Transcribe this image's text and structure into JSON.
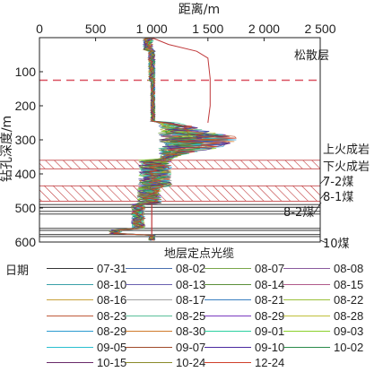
{
  "chart_data": {
    "type": "line",
    "title": "",
    "xlabel": "距离/m",
    "ylabel": "钻孔深度/m",
    "x_axis_position": "top",
    "y_inverted": true,
    "xlim": [
      0,
      2500
    ],
    "ylim": [
      600,
      0
    ],
    "x_ticks": [
      0,
      500,
      1000,
      1500,
      2000,
      2500
    ],
    "x_tick_labels": [
      "0",
      "500",
      "1 000",
      "1 500",
      "2 000",
      "2 500"
    ],
    "y_ticks": [
      100,
      200,
      300,
      400,
      500,
      600
    ],
    "y_tick_labels": [
      "100",
      "200",
      "300",
      "400",
      "500",
      "600"
    ],
    "annotation": "地层定点光缆",
    "annotation_depth": 600,
    "reference_line_x": 1000,
    "dashed_line_depth": 125,
    "layers": [
      {
        "name": "松散层",
        "type": "dashed-line",
        "depth": 125
      },
      {
        "name": "上火成岩",
        "type": "hatched",
        "top": 360,
        "bottom": 385
      },
      {
        "name": "下火成岩",
        "type": "hatched",
        "top": 435,
        "bottom": 480
      },
      {
        "name": "7-2煤",
        "type": "coal",
        "top": 490,
        "bottom": 498
      },
      {
        "name": "8-1煤",
        "type": "coal",
        "top": 510,
        "bottom": 518
      },
      {
        "name": "8-2煤",
        "type": "coal",
        "top": 560,
        "bottom": 566
      },
      {
        "name": "10煤",
        "type": "coal",
        "top": 578,
        "bottom": 584
      }
    ],
    "legend_title": "日期",
    "legend_position": "bottom",
    "colors": {
      "dashed_line": "#d95060",
      "hatch": "#c0393b",
      "reference_line": "#c0393b"
    },
    "series": [
      {
        "name": "07-31",
        "color": "#333333"
      },
      {
        "name": "08-02",
        "color": "#4a6fb0"
      },
      {
        "name": "08-07",
        "color": "#7aa64a"
      },
      {
        "name": "08-08",
        "color": "#8a5a9e"
      },
      {
        "name": "08-10",
        "color": "#3aa0a8"
      },
      {
        "name": "08-13",
        "color": "#6a60b0"
      },
      {
        "name": "08-14",
        "color": "#5b8f3a"
      },
      {
        "name": "08-15",
        "color": "#b05a8a"
      },
      {
        "name": "08-16",
        "color": "#c8a03a"
      },
      {
        "name": "08-17",
        "color": "#a0a0a0"
      },
      {
        "name": "08-21",
        "color": "#3a7fc0"
      },
      {
        "name": "08-22",
        "color": "#9ac03a"
      },
      {
        "name": "08-23",
        "color": "#c05a3a"
      },
      {
        "name": "08-25",
        "color": "#5ac09a"
      },
      {
        "name": "08-29",
        "color": "#7a3ac0"
      },
      {
        "name": "08-28",
        "color": "#c0c03a"
      },
      {
        "name": "08-29",
        "color": "#2a9ad0"
      },
      {
        "name": "08-30",
        "color": "#d07a2a"
      },
      {
        "name": "09-01",
        "color": "#2ad0a0"
      },
      {
        "name": "09-03",
        "color": "#8ad02a"
      },
      {
        "name": "09-05",
        "color": "#2ac0d0"
      },
      {
        "name": "09-07",
        "color": "#a04a2a"
      },
      {
        "name": "09-10",
        "color": "#4a2aa0"
      },
      {
        "name": "10-02",
        "color": "#2a8a4a"
      },
      {
        "name": "10-15",
        "color": "#6a2a6a"
      },
      {
        "name": "10-24",
        "color": "#8a8a2a"
      },
      {
        "name": "12-24",
        "color": "#d0402a"
      }
    ]
  }
}
